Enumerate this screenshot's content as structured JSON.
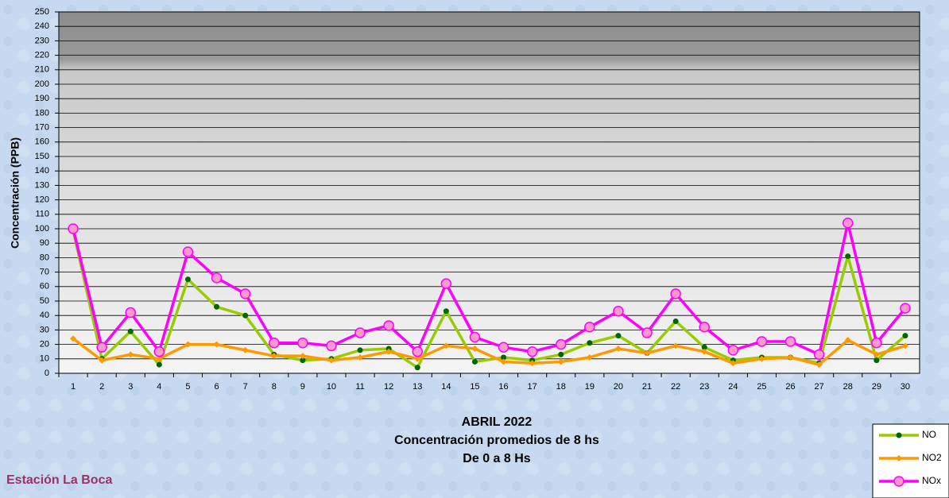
{
  "chart_data": {
    "type": "line",
    "title_lines": [
      "ABRIL 2022",
      "Concentración promedios de 8 hs",
      "De 0 a 8 Hs"
    ],
    "y_label": "Concentración  (PPB)",
    "station": "Estación La Boca",
    "categories": [
      1,
      2,
      3,
      4,
      5,
      6,
      7,
      8,
      9,
      10,
      11,
      12,
      13,
      14,
      15,
      16,
      17,
      18,
      19,
      20,
      21,
      22,
      23,
      24,
      25,
      26,
      27,
      28,
      29,
      30
    ],
    "series": [
      {
        "name": "NO",
        "color": "#99cc00",
        "marker_color": "#006600",
        "marker": "dot",
        "values": [
          99,
          10,
          29,
          6,
          65,
          46,
          40,
          13,
          9,
          10,
          16,
          17,
          4,
          43,
          8,
          11,
          9,
          13,
          21,
          26,
          14,
          36,
          18,
          9,
          11,
          11,
          7,
          81,
          9,
          26
        ]
      },
      {
        "name": "NO2",
        "color": "#ff9900",
        "marker_color": "#ff9900",
        "marker": "diamond",
        "values": [
          24,
          9,
          13,
          10,
          20,
          20,
          16,
          12,
          12,
          9,
          11,
          15,
          10,
          19,
          17,
          8,
          7,
          8,
          11,
          17,
          14,
          19,
          15,
          7,
          10,
          11,
          6,
          23,
          13,
          19
        ]
      },
      {
        "name": "NOx",
        "color": "#ff00ff",
        "marker_color": "#ff99cc",
        "marker": "circle",
        "values": [
          100,
          18,
          42,
          15,
          84,
          66,
          55,
          21,
          21,
          19,
          28,
          33,
          15,
          62,
          25,
          18,
          15,
          20,
          32,
          43,
          28,
          55,
          32,
          16,
          22,
          22,
          13,
          104,
          21,
          45
        ]
      }
    ],
    "ylim": [
      0,
      250
    ],
    "yticks": [
      0,
      10,
      20,
      30,
      40,
      50,
      60,
      70,
      80,
      90,
      100,
      110,
      120,
      130,
      140,
      150,
      160,
      170,
      180,
      190,
      200,
      210,
      220,
      230,
      240,
      250
    ],
    "grid": true
  }
}
